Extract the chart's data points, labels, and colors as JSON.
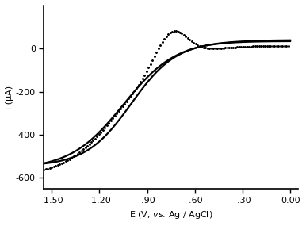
{
  "xlim": [
    -1.55,
    0.05
  ],
  "ylim": [
    -650,
    200
  ],
  "xticks": [
    -1.5,
    -1.2,
    -0.9,
    -0.6,
    -0.3,
    0.0
  ],
  "xticklabels": [
    "-1.50",
    "-1.20",
    "-.90",
    "-.60",
    "-.30",
    "0.00"
  ],
  "yticks": [
    0,
    -200,
    -400,
    -600
  ],
  "xlabel_vs": "vs.",
  "xlabel_rest": "E (V,  . Ag / AgCl)",
  "ylabel": "i (μA)",
  "bg_color": "#ffffff",
  "line_color": "#000000",
  "solid_lw": 1.6,
  "dot_lw": 1.6
}
